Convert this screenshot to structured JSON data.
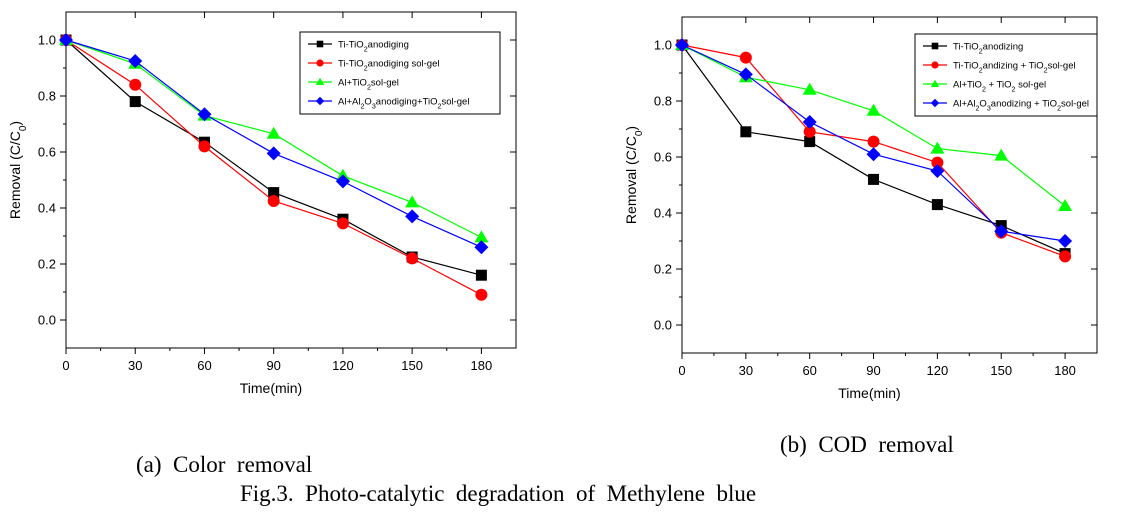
{
  "figure": {
    "caption": "Fig.3.  Photo-catalytic  degradation  of  Methylene  blue",
    "sub_a": "(a)  Color  removal",
    "sub_b": "(b)  COD  removal"
  },
  "colors": {
    "black": "#000000",
    "red": "#ff0000",
    "green": "#00ff00",
    "blue": "#0000ff"
  },
  "chart_data": [
    {
      "type": "line",
      "xlabel": "Time(min)",
      "ylabel": "Removal (C/C0)",
      "xlim": [
        0,
        195
      ],
      "ylim": [
        -0.1,
        1.1
      ],
      "xticks": [
        "0",
        "30",
        "60",
        "90",
        "120",
        "150",
        "180"
      ],
      "yticks": [
        "0.0",
        "0.2",
        "0.4",
        "0.6",
        "0.8",
        "1.0"
      ],
      "x": [
        0,
        30,
        60,
        90,
        120,
        150,
        180
      ],
      "legend_position": "top-right",
      "series": [
        {
          "name": "Ti-TiO2anodiging",
          "color": "#000000",
          "marker": "square",
          "values": [
            1.0,
            0.78,
            0.635,
            0.455,
            0.36,
            0.225,
            0.16
          ]
        },
        {
          "name": "Ti-TiO2anodiging sol-gel",
          "color": "#ff0000",
          "marker": "circle",
          "values": [
            1.0,
            0.84,
            0.62,
            0.425,
            0.345,
            0.22,
            0.09
          ]
        },
        {
          "name": "Al+TiO2sol-gel",
          "color": "#00ff00",
          "marker": "triangle",
          "values": [
            1.0,
            0.915,
            0.73,
            0.665,
            0.515,
            0.42,
            0.295
          ]
        },
        {
          "name": "Al+Al2O3anodiging+TiO2sol-gel",
          "color": "#0000ff",
          "marker": "diamond",
          "values": [
            1.0,
            0.925,
            0.735,
            0.595,
            0.495,
            0.37,
            0.26
          ]
        }
      ]
    },
    {
      "type": "line",
      "xlabel": "Time(min)",
      "ylabel": "Removal (C/C0)",
      "xlim": [
        0,
        195
      ],
      "ylim": [
        -0.1,
        1.1
      ],
      "xticks": [
        "0",
        "30",
        "60",
        "90",
        "120",
        "150",
        "180"
      ],
      "yticks": [
        "0.0",
        "0.2",
        "0.4",
        "0.6",
        "0.8",
        "1.0"
      ],
      "x": [
        0,
        30,
        60,
        90,
        120,
        150,
        180
      ],
      "legend_position": "top-right",
      "series": [
        {
          "name": "Ti-TiO2anodizing",
          "color": "#000000",
          "marker": "square",
          "values": [
            1.0,
            0.69,
            0.655,
            0.52,
            0.43,
            0.355,
            0.255
          ]
        },
        {
          "name": "Ti-TiO2andizing + TiO2sol-gel",
          "color": "#ff0000",
          "marker": "circle",
          "values": [
            1.0,
            0.955,
            0.69,
            0.655,
            0.58,
            0.33,
            0.245
          ]
        },
        {
          "name": "Al+TiO2 + TiO2 sol-gel",
          "color": "#00ff00",
          "marker": "triangle",
          "values": [
            1.0,
            0.885,
            0.84,
            0.765,
            0.63,
            0.605,
            0.425
          ]
        },
        {
          "name": "Al+Al2O3anodizing + TiO2sol-gel",
          "color": "#0000ff",
          "marker": "diamond",
          "values": [
            1.0,
            0.895,
            0.725,
            0.61,
            0.55,
            0.335,
            0.3
          ]
        }
      ]
    }
  ]
}
